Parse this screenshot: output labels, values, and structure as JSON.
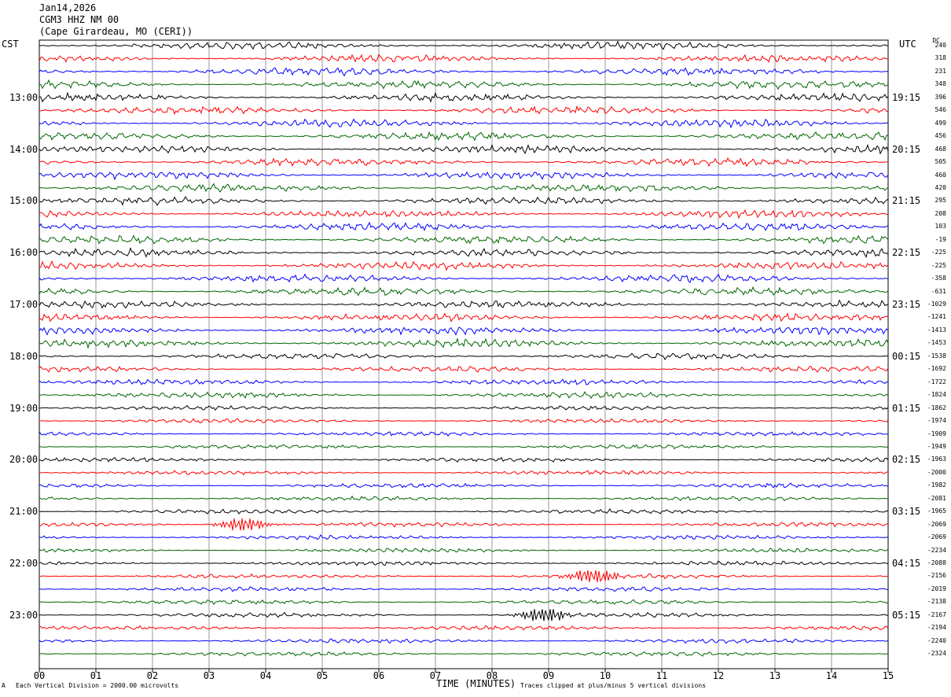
{
  "header": {
    "date": "Jan14,2026",
    "station": "CGM3 HHZ NM 00",
    "location": "(Cape Girardeau, MO (CERI))"
  },
  "left_axis_label": "CST",
  "right_axis_label": "UTC",
  "dc_label": "DC",
  "footer": {
    "vertical_division": "Each Vertical Division = 2000.00 microvolts",
    "clip_note": "Traces clipped at plus/minus 5 vertical divisions",
    "mark": "A"
  },
  "chart_data": {
    "type": "line",
    "title": "",
    "xlabel": "TIME (MINUTES)",
    "xlim": [
      0,
      15
    ],
    "x_ticks": [
      "00",
      "01",
      "02",
      "03",
      "04",
      "05",
      "06",
      "07",
      "08",
      "09",
      "10",
      "11",
      "12",
      "13",
      "14",
      "15"
    ],
    "trace_colors": [
      "#000000",
      "#ff0000",
      "#0000ff",
      "#006600"
    ],
    "left_time_labels": [
      "13:00",
      "14:00",
      "15:00",
      "16:00",
      "17:00",
      "18:00",
      "19:00",
      "20:00",
      "21:00",
      "22:00",
      "23:00"
    ],
    "right_time_labels": [
      "19:15",
      "20:15",
      "21:15",
      "22:15",
      "23:15",
      "00:15",
      "01:15",
      "02:15",
      "03:15",
      "04:15",
      "05:15"
    ],
    "hour_label_every_n_traces": 4,
    "first_hour_label_trace": 4,
    "trace_dc_offsets": [
      "240",
      "318",
      "231",
      "348",
      "396",
      "546",
      "499",
      "456",
      "468",
      "505",
      "460",
      "420",
      "295",
      "208",
      "103",
      "-19",
      "-225",
      "-225",
      "-358",
      "-631",
      "-1029",
      "-1241",
      "-1413",
      "-1453",
      "-1538",
      "-1692",
      "-1722",
      "-1824",
      "-1862",
      "-1974",
      "-1909",
      "-1949",
      "-1963",
      "-2000",
      "-1982",
      "-2081",
      "-1965",
      "-2069",
      "-2069",
      "-2234",
      "-2088",
      "-2156",
      "-2019",
      "-2138",
      "-2167",
      "-2194",
      "-2240",
      "-2324"
    ],
    "events": [
      {
        "trace": 37,
        "minute": 3.6,
        "color": "#ff0000"
      },
      {
        "trace": 41,
        "minute": 9.8,
        "color": "#ff0000"
      },
      {
        "trace": 44,
        "minute": 8.9,
        "color": "#000000"
      }
    ]
  }
}
